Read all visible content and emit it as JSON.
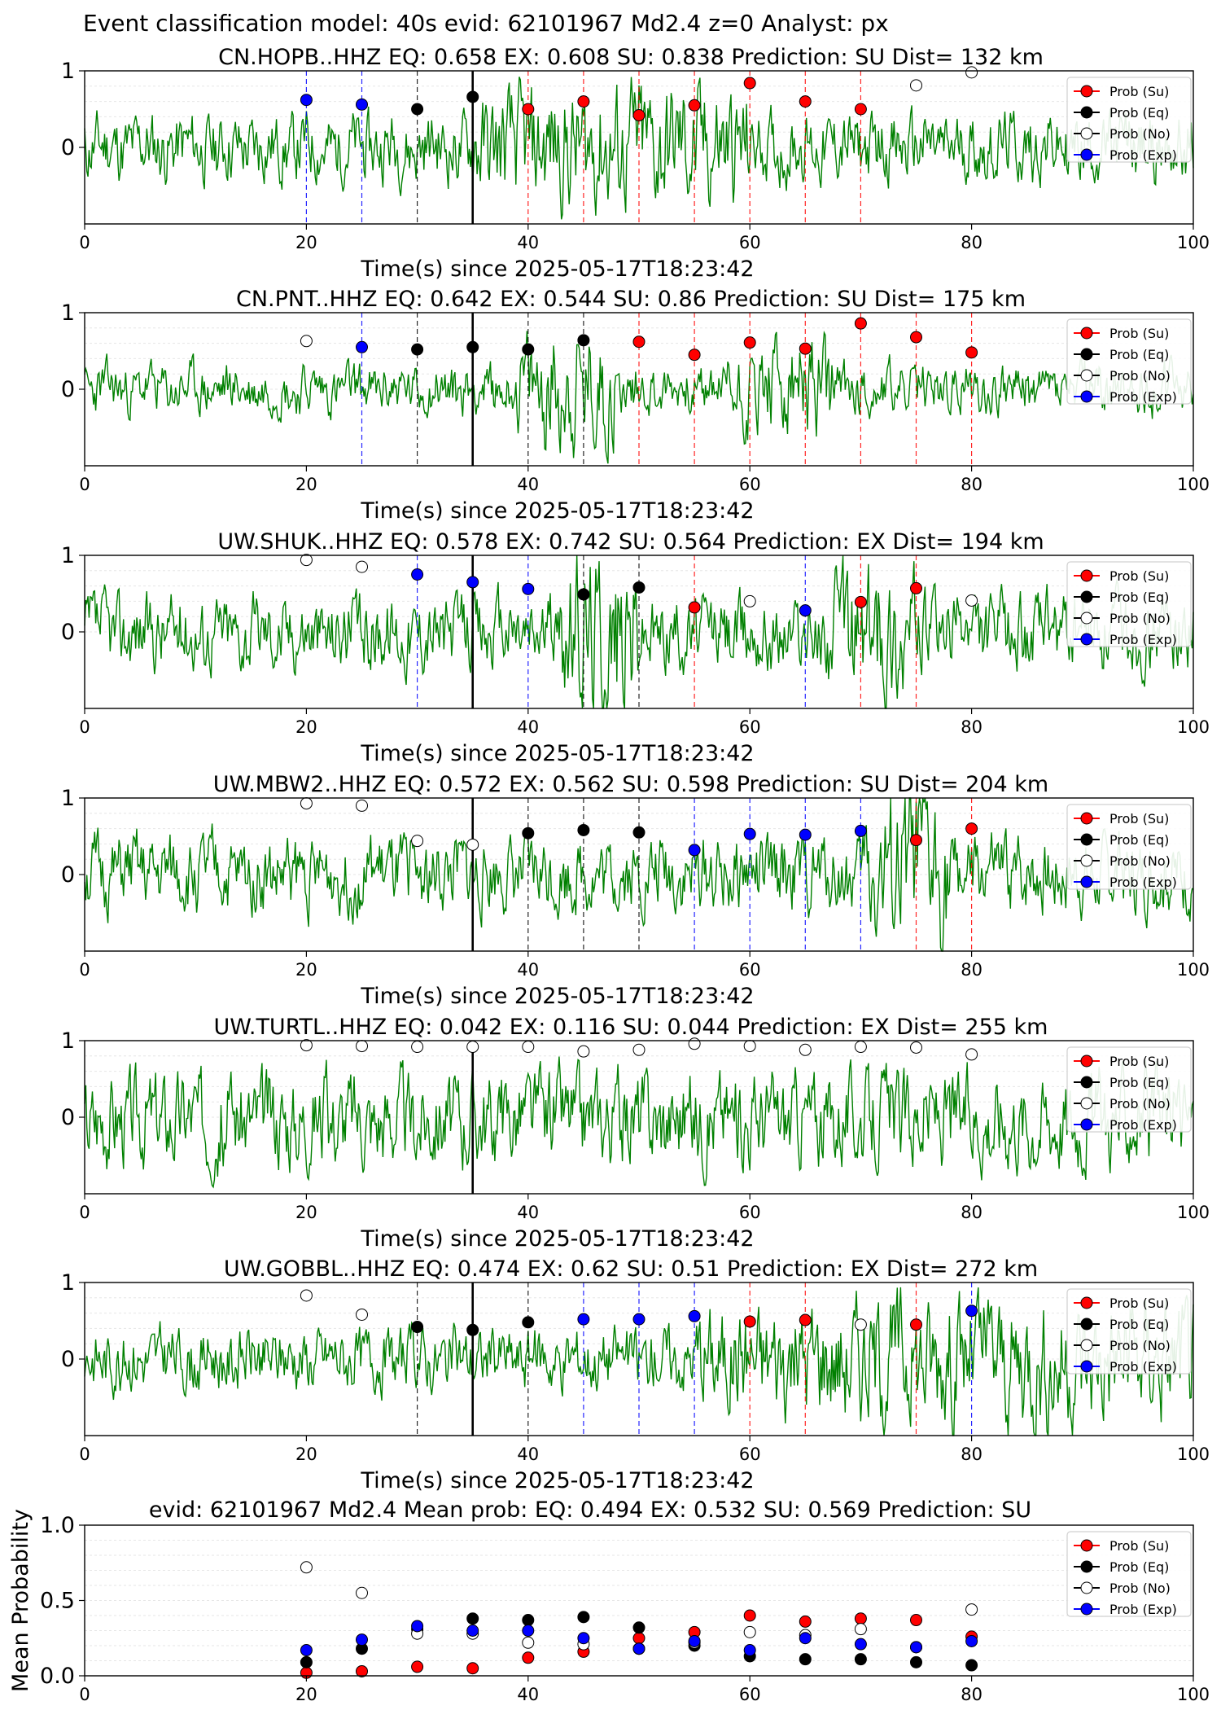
{
  "figure_title": "Event classification model: 40s evid: 62101967 Md2.4 z=0 Analyst: px",
  "legend_items": [
    {
      "label": "Prob (Su)",
      "color": "#ff0000",
      "fill": "#ff0000"
    },
    {
      "label": "Prob (Eq)",
      "color": "#000000",
      "fill": "#000000"
    },
    {
      "label": "Prob (No)",
      "color": "#000000",
      "fill": "#ffffff"
    },
    {
      "label": "Prob (Exp)",
      "color": "#0000ff",
      "fill": "#0000ff"
    }
  ],
  "colors": {
    "su": "#ff0000",
    "eq": "#000000",
    "no": "#ffffff",
    "exp": "#0000ff",
    "waveform": "#008000"
  },
  "chart_data": [
    {
      "type": "scatter",
      "title": "CN.HOPB..HHZ   EQ: 0.658  EX: 0.608  SU: 0.838   Prediction: SU    Dist= 132 km",
      "xlabel": "Time(s) since 2025-05-17T18:23:42",
      "xlim": [
        0,
        100
      ],
      "ylim": [
        -1,
        1
      ],
      "xticks": [
        "0",
        "20",
        "40",
        "60",
        "80",
        "100"
      ],
      "yticks": [
        "1",
        "0"
      ],
      "origin_line_x": 35,
      "waveform": {
        "amp": 0.55,
        "seed": 11,
        "bursts": [
          [
            35,
            60,
            0.9
          ]
        ]
      },
      "points": [
        {
          "x": 20,
          "cls": "exp",
          "y": 0.62
        },
        {
          "x": 25,
          "cls": "exp",
          "y": 0.56
        },
        {
          "x": 30,
          "cls": "eq",
          "y": 0.5
        },
        {
          "x": 35,
          "cls": "eq",
          "y": 0.66
        },
        {
          "x": 40,
          "cls": "su",
          "y": 0.5
        },
        {
          "x": 45,
          "cls": "su",
          "y": 0.6
        },
        {
          "x": 50,
          "cls": "su",
          "y": 0.42
        },
        {
          "x": 55,
          "cls": "su",
          "y": 0.55
        },
        {
          "x": 60,
          "cls": "su",
          "y": 0.84
        },
        {
          "x": 65,
          "cls": "su",
          "y": 0.6
        },
        {
          "x": 70,
          "cls": "su",
          "y": 0.5
        },
        {
          "x": 75,
          "cls": "no",
          "y": 0.81
        },
        {
          "x": 80,
          "cls": "no",
          "y": 0.98
        }
      ]
    },
    {
      "type": "scatter",
      "title": "CN.PNT..HHZ   EQ: 0.642  EX: 0.544  SU: 0.86   Prediction: SU    Dist= 175 km",
      "xlabel": "Time(s) since 2025-05-17T18:23:42",
      "xlim": [
        0,
        100
      ],
      "ylim": [
        -1,
        1
      ],
      "xticks": [
        "0",
        "20",
        "40",
        "60",
        "80",
        "100"
      ],
      "yticks": [
        "1",
        "0"
      ],
      "origin_line_x": 35,
      "waveform": {
        "amp": 0.4,
        "seed": 23,
        "bursts": [
          [
            39,
            48,
            1.6
          ],
          [
            58,
            68,
            1.0
          ]
        ]
      },
      "points": [
        {
          "x": 20,
          "cls": "no",
          "y": 0.63
        },
        {
          "x": 25,
          "cls": "exp",
          "y": 0.55
        },
        {
          "x": 30,
          "cls": "eq",
          "y": 0.52
        },
        {
          "x": 35,
          "cls": "eq",
          "y": 0.55
        },
        {
          "x": 40,
          "cls": "eq",
          "y": 0.52
        },
        {
          "x": 45,
          "cls": "eq",
          "y": 0.64
        },
        {
          "x": 50,
          "cls": "su",
          "y": 0.62
        },
        {
          "x": 55,
          "cls": "su",
          "y": 0.45
        },
        {
          "x": 60,
          "cls": "su",
          "y": 0.61
        },
        {
          "x": 65,
          "cls": "su",
          "y": 0.53
        },
        {
          "x": 70,
          "cls": "su",
          "y": 0.86
        },
        {
          "x": 75,
          "cls": "su",
          "y": 0.68
        },
        {
          "x": 80,
          "cls": "su",
          "y": 0.48
        }
      ]
    },
    {
      "type": "scatter",
      "title": "UW.SHUK..HHZ   EQ: 0.578  EX: 0.742  SU: 0.564   Prediction: EX    Dist= 194 km",
      "xlabel": "Time(s) since 2025-05-17T18:23:42",
      "xlim": [
        0,
        100
      ],
      "ylim": [
        -1,
        1
      ],
      "xticks": [
        "0",
        "20",
        "40",
        "60",
        "80",
        "100"
      ],
      "yticks": [
        "1",
        "0"
      ],
      "origin_line_x": 35,
      "waveform": {
        "amp": 0.6,
        "seed": 37,
        "bursts": [
          [
            43,
            50,
            1.4
          ],
          [
            67,
            75,
            0.9
          ]
        ]
      },
      "points": [
        {
          "x": 20,
          "cls": "no",
          "y": 0.94
        },
        {
          "x": 25,
          "cls": "no",
          "y": 0.85
        },
        {
          "x": 30,
          "cls": "exp",
          "y": 0.75
        },
        {
          "x": 35,
          "cls": "exp",
          "y": 0.65
        },
        {
          "x": 40,
          "cls": "exp",
          "y": 0.56
        },
        {
          "x": 45,
          "cls": "eq",
          "y": 0.49
        },
        {
          "x": 50,
          "cls": "eq",
          "y": 0.58
        },
        {
          "x": 55,
          "cls": "su",
          "y": 0.32
        },
        {
          "x": 60,
          "cls": "no",
          "y": 0.4
        },
        {
          "x": 65,
          "cls": "exp",
          "y": 0.28
        },
        {
          "x": 70,
          "cls": "su",
          "y": 0.39
        },
        {
          "x": 75,
          "cls": "su",
          "y": 0.57
        },
        {
          "x": 80,
          "cls": "no",
          "y": 0.41
        }
      ]
    },
    {
      "type": "scatter",
      "title": "UW.MBW2..HHZ   EQ: 0.572  EX: 0.562  SU: 0.598   Prediction: SU    Dist= 204 km",
      "xlabel": "Time(s) since 2025-05-17T18:23:42",
      "xlim": [
        0,
        100
      ],
      "ylim": [
        -1,
        1
      ],
      "xticks": [
        "0",
        "20",
        "40",
        "60",
        "80",
        "100"
      ],
      "yticks": [
        "1",
        "0"
      ],
      "origin_line_x": 35,
      "waveform": {
        "amp": 0.6,
        "seed": 51,
        "bursts": [
          [
            70,
            78,
            1.3
          ]
        ]
      },
      "points": [
        {
          "x": 20,
          "cls": "no",
          "y": 0.93
        },
        {
          "x": 25,
          "cls": "no",
          "y": 0.9
        },
        {
          "x": 30,
          "cls": "no",
          "y": 0.44
        },
        {
          "x": 35,
          "cls": "no",
          "y": 0.39
        },
        {
          "x": 40,
          "cls": "eq",
          "y": 0.54
        },
        {
          "x": 45,
          "cls": "eq",
          "y": 0.58
        },
        {
          "x": 50,
          "cls": "eq",
          "y": 0.55
        },
        {
          "x": 55,
          "cls": "exp",
          "y": 0.32
        },
        {
          "x": 60,
          "cls": "exp",
          "y": 0.53
        },
        {
          "x": 65,
          "cls": "exp",
          "y": 0.52
        },
        {
          "x": 70,
          "cls": "exp",
          "y": 0.57
        },
        {
          "x": 75,
          "cls": "su",
          "y": 0.45
        },
        {
          "x": 80,
          "cls": "su",
          "y": 0.6
        }
      ]
    },
    {
      "type": "scatter",
      "title": "UW.TURTL..HHZ   EQ: 0.042  EX: 0.116  SU: 0.044   Prediction: EX    Dist= 255 km",
      "xlabel": "Time(s) since 2025-05-17T18:23:42",
      "xlim": [
        0,
        100
      ],
      "ylim": [
        -1,
        1
      ],
      "xticks": [
        "0",
        "20",
        "40",
        "60",
        "80",
        "100"
      ],
      "yticks": [
        "1",
        "0"
      ],
      "origin_line_x": 35,
      "waveform": {
        "amp": 0.75,
        "seed": 67,
        "bursts": []
      },
      "points": [
        {
          "x": 20,
          "cls": "no",
          "y": 0.94
        },
        {
          "x": 25,
          "cls": "no",
          "y": 0.93
        },
        {
          "x": 30,
          "cls": "no",
          "y": 0.92
        },
        {
          "x": 35,
          "cls": "no",
          "y": 0.92
        },
        {
          "x": 40,
          "cls": "no",
          "y": 0.92
        },
        {
          "x": 45,
          "cls": "no",
          "y": 0.86
        },
        {
          "x": 50,
          "cls": "no",
          "y": 0.88
        },
        {
          "x": 55,
          "cls": "no",
          "y": 0.96
        },
        {
          "x": 60,
          "cls": "no",
          "y": 0.93
        },
        {
          "x": 65,
          "cls": "no",
          "y": 0.88
        },
        {
          "x": 70,
          "cls": "no",
          "y": 0.92
        },
        {
          "x": 75,
          "cls": "no",
          "y": 0.91
        },
        {
          "x": 80,
          "cls": "no",
          "y": 0.82
        }
      ]
    },
    {
      "type": "scatter",
      "title": "UW.GOBBL..HHZ   EQ: 0.474  EX: 0.62  SU: 0.51   Prediction: EX    Dist= 272 km",
      "xlabel": "Time(s) since 2025-05-17T18:23:42",
      "xlim": [
        0,
        100
      ],
      "ylim": [
        -1,
        1
      ],
      "xticks": [
        "0",
        "20",
        "40",
        "60",
        "80",
        "100"
      ],
      "yticks": [
        "1",
        "0"
      ],
      "origin_line_x": 35,
      "waveform": {
        "amp": 0.5,
        "seed": 83,
        "bursts": [
          [
            55,
            100,
            1.1
          ]
        ]
      },
      "points": [
        {
          "x": 20,
          "cls": "no",
          "y": 0.83
        },
        {
          "x": 25,
          "cls": "no",
          "y": 0.58
        },
        {
          "x": 30,
          "cls": "eq",
          "y": 0.42
        },
        {
          "x": 35,
          "cls": "eq",
          "y": 0.38
        },
        {
          "x": 40,
          "cls": "eq",
          "y": 0.48
        },
        {
          "x": 45,
          "cls": "exp",
          "y": 0.52
        },
        {
          "x": 50,
          "cls": "exp",
          "y": 0.52
        },
        {
          "x": 55,
          "cls": "exp",
          "y": 0.56
        },
        {
          "x": 60,
          "cls": "su",
          "y": 0.49
        },
        {
          "x": 65,
          "cls": "su",
          "y": 0.51
        },
        {
          "x": 70,
          "cls": "no",
          "y": 0.45
        },
        {
          "x": 75,
          "cls": "su",
          "y": 0.45
        },
        {
          "x": 80,
          "cls": "exp",
          "y": 0.63
        }
      ]
    },
    {
      "type": "scatter",
      "title": "evid: 62101967  Md2.4   Mean prob:   EQ: 0.494  EX: 0.532  SU: 0.569   Prediction: SU",
      "ylabel": "Mean Probability",
      "xlim": [
        0,
        100
      ],
      "ylim": [
        0,
        1
      ],
      "xticks": [
        "0",
        "20",
        "40",
        "60",
        "80",
        "100"
      ],
      "yticks": [
        "1.0",
        "0.5",
        "0.0"
      ],
      "x": [
        20,
        25,
        30,
        35,
        40,
        45,
        50,
        55,
        60,
        65,
        70,
        75,
        80
      ],
      "series": [
        {
          "name": "Prob (Su)",
          "cls": "su",
          "values": [
            0.02,
            0.03,
            0.06,
            0.05,
            0.12,
            0.16,
            0.25,
            0.29,
            0.4,
            0.36,
            0.38,
            0.37,
            0.26
          ]
        },
        {
          "name": "Prob (Eq)",
          "cls": "eq",
          "values": [
            0.09,
            0.18,
            0.31,
            0.38,
            0.37,
            0.39,
            0.32,
            0.2,
            0.13,
            0.11,
            0.11,
            0.09,
            0.07
          ]
        },
        {
          "name": "Prob (No)",
          "cls": "no",
          "values": [
            0.72,
            0.55,
            0.28,
            0.28,
            0.22,
            0.21,
            0.18,
            0.22,
            0.29,
            0.27,
            0.31,
            0.19,
            0.44
          ]
        },
        {
          "name": "Prob (Exp)",
          "cls": "exp",
          "values": [
            0.17,
            0.24,
            0.33,
            0.3,
            0.3,
            0.25,
            0.18,
            0.23,
            0.17,
            0.25,
            0.21,
            0.19,
            0.23
          ]
        }
      ]
    }
  ]
}
